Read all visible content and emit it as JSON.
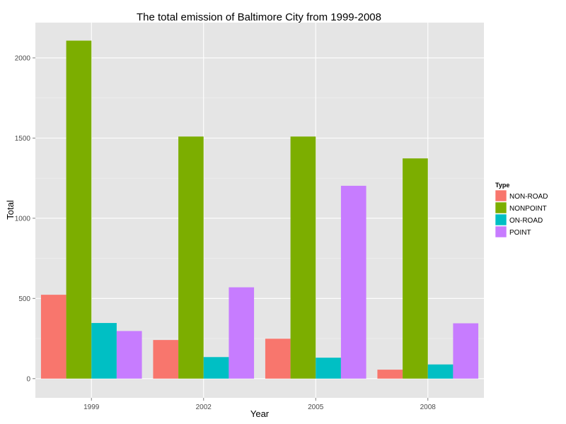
{
  "chart_data": {
    "type": "bar",
    "title": "The total emission of Baltimore City from 1999-2008",
    "xlabel": "Year",
    "ylabel": "Total",
    "categories": [
      "1999",
      "2002",
      "2005",
      "2008"
    ],
    "series": [
      {
        "name": "NON-ROAD",
        "color": "#F8766D",
        "values": [
          522.9,
          240.8,
          248.9,
          55.8
        ]
      },
      {
        "name": "NONPOINT",
        "color": "#7CAE00",
        "values": [
          2107.6,
          1509.5,
          1509.5,
          1373.2
        ]
      },
      {
        "name": "ON-ROAD",
        "color": "#00BFC4",
        "values": [
          346.8,
          134.3,
          130.4,
          88.3
        ]
      },
      {
        "name": "POINT",
        "color": "#C77CFF",
        "values": [
          296.8,
          569.3,
          1202.5,
          344.9
        ]
      }
    ],
    "ylim": [
      -120,
      2220
    ],
    "yticks": [
      0,
      500,
      1000,
      1500,
      2000
    ],
    "legend": {
      "title": "Type",
      "position": "right"
    },
    "grid": true,
    "panel_background": "#E5E5E5",
    "grid_color": "#FFFFFF"
  }
}
